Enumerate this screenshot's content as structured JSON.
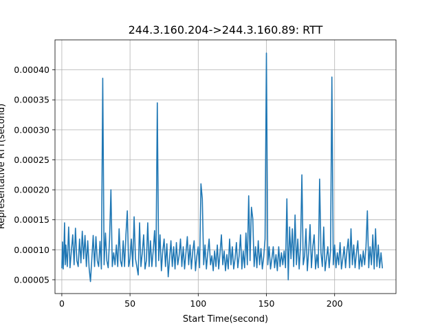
{
  "chart_data": {
    "type": "line",
    "title": "244.3.160.204->244.3.160.89: RTT",
    "xlabel": "Start Time(second)",
    "ylabel": "Representative RTT(second)",
    "xlim": [
      -5,
      245
    ],
    "ylim": [
      2.7e-05,
      0.00045
    ],
    "xticks": [
      0,
      50,
      100,
      150,
      200
    ],
    "xtick_labels": [
      "0",
      "50",
      "100",
      "150",
      "200"
    ],
    "yticks": [
      5e-05,
      0.0001,
      0.00015,
      0.0002,
      0.00025,
      0.0003,
      0.00035,
      0.0004
    ],
    "ytick_labels": [
      "0.00005",
      "0.00010",
      "0.00015",
      "0.00020",
      "0.00025",
      "0.00030",
      "0.00035",
      "0.00040"
    ],
    "grid": true,
    "color": "#1f77b4",
    "series": [
      {
        "values": [
          [
            0,
            7e-05
          ],
          [
            0.5,
            0.000113
          ],
          [
            1,
            6.8e-05
          ],
          [
            1.5,
            9.5e-05
          ],
          [
            2,
            0.000145
          ],
          [
            2.5,
            7.5e-05
          ],
          [
            3,
            0.000108
          ],
          [
            4,
            7.2e-05
          ],
          [
            5,
            0.000138
          ],
          [
            6,
            7e-05
          ],
          [
            7,
            9.8e-05
          ],
          [
            8,
            0.000125
          ],
          [
            9,
            7.5e-05
          ],
          [
            10,
            0.000136
          ],
          [
            11,
            8.2e-05
          ],
          [
            12,
            7.2e-05
          ],
          [
            13,
            0.000118
          ],
          [
            14,
            7.8e-05
          ],
          [
            15,
            0.000131
          ],
          [
            16,
            8.5e-05
          ],
          [
            17,
            0.000124
          ],
          [
            18,
            7.2e-05
          ],
          [
            19,
            0.000115
          ],
          [
            20,
            7e-05
          ],
          [
            21,
            4.7e-05
          ],
          [
            22,
            8.5e-05
          ],
          [
            23,
            0.000124
          ],
          [
            24,
            7.2e-05
          ],
          [
            25,
            0.000122
          ],
          [
            26,
            8.2e-05
          ],
          [
            27,
            7.2e-05
          ],
          [
            28,
            0.000114
          ],
          [
            29,
            6.8e-05
          ],
          [
            30,
            0.000386
          ],
          [
            31,
            7.5e-05
          ],
          [
            32,
            0.000128
          ],
          [
            33,
            8.2e-05
          ],
          [
            34,
            7e-05
          ],
          [
            35,
            0.000118
          ],
          [
            36,
            0.0002
          ],
          [
            37,
            7.2e-05
          ],
          [
            38,
            9.5e-05
          ],
          [
            39,
            7.5e-05
          ],
          [
            40,
            0.000108
          ],
          [
            41,
            7.2e-05
          ],
          [
            42,
            0.000135
          ],
          [
            43,
            8.2e-05
          ],
          [
            44,
            7.2e-05
          ],
          [
            45,
            0.000115
          ],
          [
            46,
            7.2e-05
          ],
          [
            47,
            0.000125
          ],
          [
            48,
            0.000165
          ],
          [
            49,
            7.2e-05
          ],
          [
            50,
            8.5e-05
          ],
          [
            51,
            0.000118
          ],
          [
            52,
            7.2e-05
          ],
          [
            53,
            0.000155
          ],
          [
            54,
            8.5e-05
          ],
          [
            55,
            7.2e-05
          ],
          [
            56,
            5.8e-05
          ],
          [
            57,
            0.000145
          ],
          [
            58,
            7.2e-05
          ],
          [
            59,
            9.5e-05
          ],
          [
            60,
            0.000125
          ],
          [
            61,
            6.8e-05
          ],
          [
            62,
            8.2e-05
          ],
          [
            63,
            0.000145
          ],
          [
            64,
            7.2e-05
          ],
          [
            65,
            0.000115
          ],
          [
            66,
            7.2e-05
          ],
          [
            67,
            9.8e-05
          ],
          [
            68,
            0.000132
          ],
          [
            69,
            7.2e-05
          ],
          [
            70,
            0.000345
          ],
          [
            71,
            8.2e-05
          ],
          [
            72,
            0.000125
          ],
          [
            73,
            6.5e-05
          ],
          [
            74,
            9.8e-05
          ],
          [
            75,
            0.000118
          ],
          [
            76,
            7.2e-05
          ],
          [
            77,
            0.00011
          ],
          [
            78,
            5.5e-05
          ],
          [
            79,
            8.5e-05
          ],
          [
            80,
            0.000115
          ],
          [
            81,
            7.2e-05
          ],
          [
            82,
            0.000105
          ],
          [
            83,
            6.8e-05
          ],
          [
            84,
            0.000112
          ],
          [
            85,
            7.5e-05
          ],
          [
            86,
            9e-05
          ],
          [
            87,
            0.000118
          ],
          [
            88,
            7.2e-05
          ],
          [
            89,
            0.000105
          ],
          [
            90,
            6.8e-05
          ],
          [
            91,
            9.5e-05
          ],
          [
            92,
            0.000122
          ],
          [
            93,
            7.5e-05
          ],
          [
            94,
            0.000108
          ],
          [
            95,
            6.8e-05
          ],
          [
            96,
            9.8e-05
          ],
          [
            97,
            0.000115
          ],
          [
            98,
            6.5e-05
          ],
          [
            99,
            9e-05
          ],
          [
            100,
            0.000105
          ],
          [
            101,
            7e-05
          ],
          [
            102,
            0.00021
          ],
          [
            103,
            0.000185
          ],
          [
            104,
            7.5e-05
          ],
          [
            105,
            0.000108
          ],
          [
            106,
            6.8e-05
          ],
          [
            107,
            9.5e-05
          ],
          [
            108,
            0.000118
          ],
          [
            109,
            7.5e-05
          ],
          [
            110,
            9e-05
          ],
          [
            111,
            6.5e-05
          ],
          [
            112,
            9.8e-05
          ],
          [
            113,
            7.2e-05
          ],
          [
            114,
            0.000108
          ],
          [
            115,
            6.8e-05
          ],
          [
            116,
            9.5e-05
          ],
          [
            117,
            0.000125
          ],
          [
            118,
            7.5e-05
          ],
          [
            119,
            9.8e-05
          ],
          [
            120,
            6.5e-05
          ],
          [
            121,
            9.2e-05
          ],
          [
            122,
            6.8e-05
          ],
          [
            123,
            0.000118
          ],
          [
            124,
            7.5e-05
          ],
          [
            125,
            0.000105
          ],
          [
            126,
            6.8e-05
          ],
          [
            127,
            8.5e-05
          ],
          [
            128,
            0.000112
          ],
          [
            129,
            7e-05
          ],
          [
            130,
            9e-05
          ],
          [
            131,
            0.000125
          ],
          [
            132,
            6.8e-05
          ],
          [
            133,
            9.8e-05
          ],
          [
            134,
            7e-05
          ],
          [
            135,
            0.000128
          ],
          [
            136,
            7.5e-05
          ],
          [
            137,
            0.00019
          ],
          [
            138,
            8.2e-05
          ],
          [
            139,
            0.000171
          ],
          [
            140,
            0.000152
          ],
          [
            141,
            7.2e-05
          ],
          [
            142,
            0.000105
          ],
          [
            143,
            7e-05
          ],
          [
            144,
            0.000115
          ],
          [
            145,
            7.5e-05
          ],
          [
            146,
            0.000102
          ],
          [
            147,
            6.8e-05
          ],
          [
            148,
            8.8e-05
          ],
          [
            149,
            0.000118
          ],
          [
            150,
            0.000428
          ],
          [
            151,
            7.5e-05
          ],
          [
            152,
            0.000105
          ],
          [
            153,
            6.8e-05
          ],
          [
            154,
            8.5e-05
          ],
          [
            155,
            0.000105
          ],
          [
            156,
            7e-05
          ],
          [
            157,
            9.2e-05
          ],
          [
            158,
            6.5e-05
          ],
          [
            159,
            0.000105
          ],
          [
            160,
            7.2e-05
          ],
          [
            161,
            9.5e-05
          ],
          [
            162,
            7.5e-05
          ],
          [
            163,
            9.8e-05
          ],
          [
            164,
            7e-05
          ],
          [
            165,
            0.000185
          ],
          [
            166,
            5e-05
          ],
          [
            167,
            0.000138
          ],
          [
            168,
            8.5e-05
          ],
          [
            169,
            0.000135
          ],
          [
            170,
            7.2e-05
          ],
          [
            171,
            0.000158
          ],
          [
            172,
            7.5e-05
          ],
          [
            173,
            0.000118
          ],
          [
            174,
            6.8e-05
          ],
          [
            175,
            0.000105
          ],
          [
            176,
            0.000225
          ],
          [
            177,
            7.5e-05
          ],
          [
            178,
            9e-05
          ],
          [
            179,
            0.000135
          ],
          [
            180,
            6.5e-05
          ],
          [
            181,
            9.8e-05
          ],
          [
            182,
            0.000142
          ],
          [
            183,
            7e-05
          ],
          [
            184,
            0.000105
          ],
          [
            185,
            0.000125
          ],
          [
            186,
            6.8e-05
          ],
          [
            187,
            9.2e-05
          ],
          [
            188,
            7e-05
          ],
          [
            189,
            0.000218
          ],
          [
            190,
            9.5e-05
          ],
          [
            191,
            7.2e-05
          ],
          [
            192,
            0.000138
          ],
          [
            193,
            6.5e-05
          ],
          [
            194,
            8.5e-05
          ],
          [
            195,
            0.000105
          ],
          [
            196,
            7e-05
          ],
          [
            197,
            9.8e-05
          ],
          [
            198,
            0.000388
          ],
          [
            199,
            7.5e-05
          ],
          [
            200,
            0.000108
          ],
          [
            201,
            7e-05
          ],
          [
            202,
            9.5e-05
          ],
          [
            203,
            7.5e-05
          ],
          [
            204,
            0.000112
          ],
          [
            205,
            6.8e-05
          ],
          [
            206,
            8.5e-05
          ],
          [
            207,
            0.000105
          ],
          [
            208,
            7e-05
          ],
          [
            209,
            9.8e-05
          ],
          [
            210,
            0.000118
          ],
          [
            211,
            7e-05
          ],
          [
            212,
            0.000135
          ],
          [
            213,
            7.5e-05
          ],
          [
            214,
            0.000108
          ],
          [
            215,
            7e-05
          ],
          [
            216,
            9.5e-05
          ],
          [
            217,
            0.000115
          ],
          [
            218,
            6.8e-05
          ],
          [
            219,
            9.2e-05
          ],
          [
            220,
            7.2e-05
          ],
          [
            221,
            9.8e-05
          ],
          [
            222,
            7.5e-05
          ],
          [
            223,
            0.000105
          ],
          [
            224,
            0.000165
          ],
          [
            225,
            7e-05
          ],
          [
            226,
            0.000105
          ],
          [
            227,
            7.5e-05
          ],
          [
            228,
            0.000125
          ],
          [
            229,
            6.8e-05
          ],
          [
            230,
            0.000135
          ],
          [
            231,
            7.2e-05
          ],
          [
            232,
            0.000108
          ],
          [
            233,
            7e-05
          ],
          [
            234,
            9.5e-05
          ],
          [
            235,
            7e-05
          ]
        ]
      }
    ]
  }
}
